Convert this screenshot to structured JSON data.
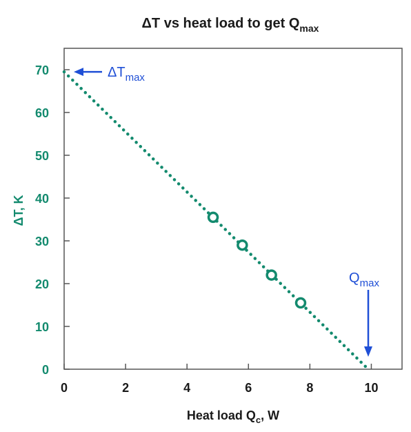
{
  "chart_data": {
    "type": "scatter",
    "title": "ΔT vs heat load to get Q",
    "title_subscript": "max",
    "xlabel": "Heat load Q",
    "xlabel_subscript": "c",
    "xlabel_suffix": ", W",
    "ylabel": "ΔT, K",
    "xlim": [
      0,
      11
    ],
    "ylim": [
      0,
      75
    ],
    "x_ticks": [
      0,
      2,
      4,
      6,
      8,
      10
    ],
    "y_ticks": [
      0,
      10,
      20,
      30,
      40,
      50,
      60,
      70
    ],
    "x_tick_labels": [
      "0",
      "2",
      "4",
      "6",
      "8",
      "10"
    ],
    "y_tick_labels": [
      "0",
      "10",
      "20",
      "30",
      "40",
      "50",
      "60",
      "70"
    ],
    "grid": false,
    "series": [
      {
        "type": "scatter",
        "x": [
          4.85,
          5.8,
          6.75,
          7.7
        ],
        "y": [
          35.5,
          29,
          22,
          15.5
        ]
      },
      {
        "type": "line",
        "style": "dotted",
        "x": [
          0,
          9.9
        ],
        "y": [
          69.5,
          0
        ]
      }
    ],
    "annotations": [
      {
        "text": "ΔT",
        "subscript": "max",
        "x": 0,
        "y": 69.5,
        "arrow": "left"
      },
      {
        "text": "Q",
        "subscript": "max",
        "x": 9.9,
        "y": 0,
        "arrow": "down"
      }
    ],
    "colors": {
      "series": "#138a6e",
      "annotation": "#1f4fd6",
      "text": "#1a1a1a"
    }
  }
}
